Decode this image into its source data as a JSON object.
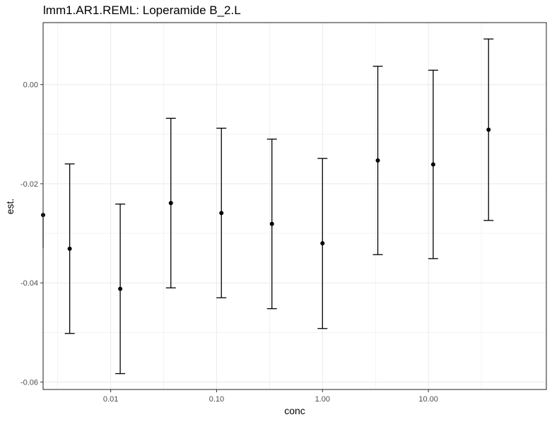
{
  "chart_data": {
    "type": "scatter",
    "title": "lmm1.AR1.REML: Loperamide B_2.L",
    "xlabel": "conc",
    "ylabel": "est.",
    "x_scale": "log10",
    "x_ticks": [
      0.01,
      0.1,
      1,
      10
    ],
    "x_tick_labels": [
      "0.01",
      "0.10",
      "1.00",
      "10.00"
    ],
    "xlim": [
      0.0023,
      130
    ],
    "y_ticks": [
      0,
      -0.02,
      -0.04,
      -0.06
    ],
    "y_tick_labels": [
      "0.00",
      "-0.02",
      "-0.04",
      "-0.06"
    ],
    "ylim": [
      -0.0615,
      0.0125
    ],
    "grid": true,
    "series": [
      {
        "points": [
          {
            "x": 0.0023,
            "est": -0.0263,
            "lower": -0.033,
            "upper": -0.0263
          },
          {
            "x": 0.0041,
            "est": -0.0331,
            "lower": -0.0502,
            "upper": -0.016
          },
          {
            "x": 0.0123,
            "est": -0.0412,
            "lower": -0.0583,
            "upper": -0.0241
          },
          {
            "x": 0.037,
            "est": -0.0239,
            "lower": -0.041,
            "upper": -0.0068
          },
          {
            "x": 0.111,
            "est": -0.0259,
            "lower": -0.043,
            "upper": -0.0088
          },
          {
            "x": 0.333,
            "est": -0.0281,
            "lower": -0.0452,
            "upper": -0.011
          },
          {
            "x": 1.0,
            "est": -0.032,
            "lower": -0.0492,
            "upper": -0.0149
          },
          {
            "x": 3.33,
            "est": -0.0153,
            "lower": -0.0343,
            "upper": 0.0037
          },
          {
            "x": 11.1,
            "est": -0.0161,
            "lower": -0.0351,
            "upper": 0.0029
          },
          {
            "x": 37.0,
            "est": -0.0091,
            "lower": -0.0274,
            "upper": 0.0092
          }
        ]
      }
    ]
  }
}
